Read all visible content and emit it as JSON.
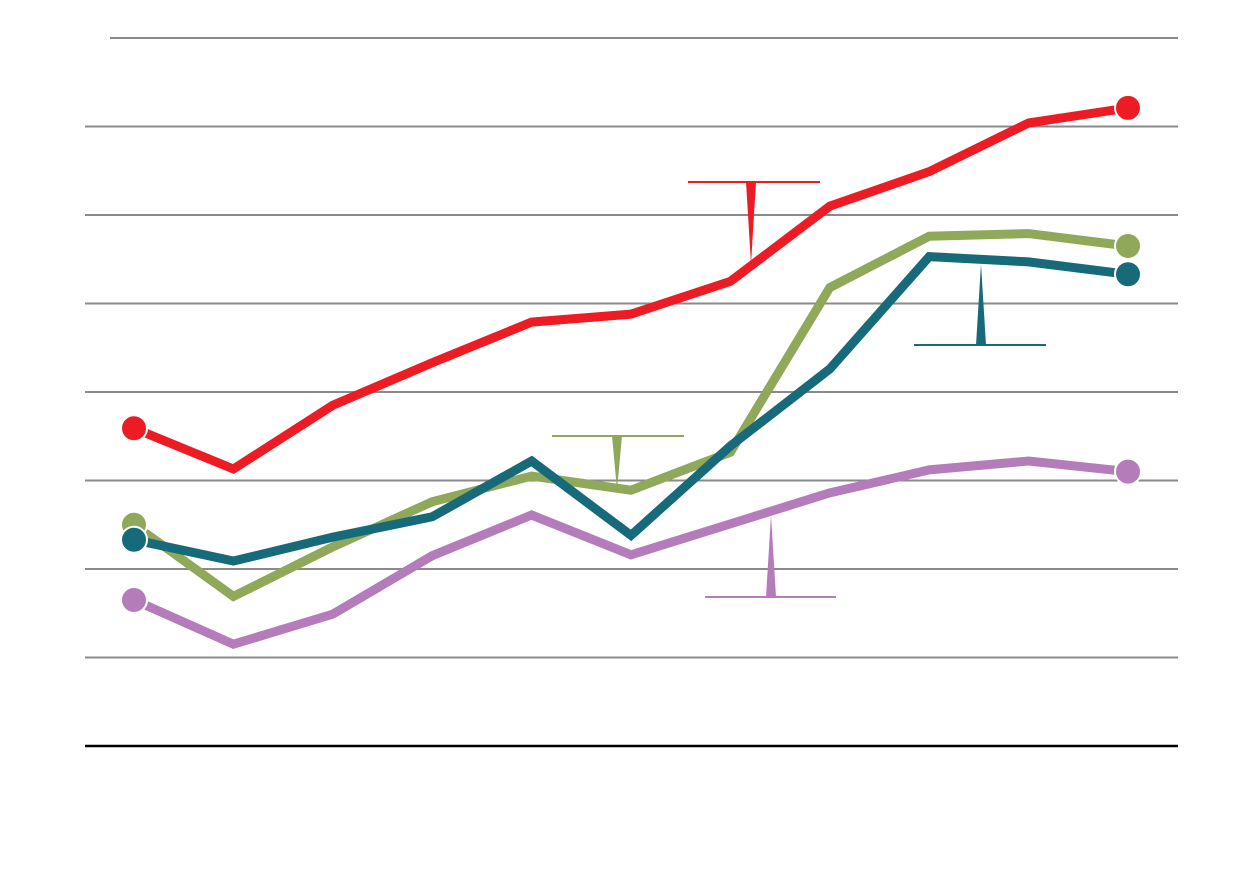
{
  "chart_data": {
    "type": "line",
    "categories": [
      null,
      null,
      null,
      null,
      null,
      null,
      null,
      null,
      null,
      null,
      null
    ],
    "series": [
      {
        "color": "#ed1c24",
        "values": [
          3.59,
          3.13,
          3.85,
          4.33,
          4.79,
          4.88,
          5.25,
          6.1,
          6.49,
          7.04,
          7.21
        ]
      },
      {
        "color": "#8fa85a",
        "values": [
          2.5,
          1.69,
          2.25,
          2.76,
          3.05,
          2.89,
          3.32,
          5.18,
          5.76,
          5.79,
          5.65
        ]
      },
      {
        "color": "#176a7a",
        "values": [
          2.33,
          2.09,
          2.36,
          2.59,
          3.22,
          2.38,
          3.39,
          4.26,
          5.53,
          5.47,
          5.33
        ]
      },
      {
        "color": "#b57cbb",
        "values": [
          1.65,
          1.15,
          1.49,
          2.15,
          2.61,
          2.16,
          2.51,
          2.86,
          3.12,
          3.22,
          3.1
        ]
      }
    ],
    "ylim": [
      0,
      8
    ],
    "yticks": [
      1,
      2,
      3,
      4,
      5,
      6,
      7,
      8
    ],
    "grid": true
  }
}
